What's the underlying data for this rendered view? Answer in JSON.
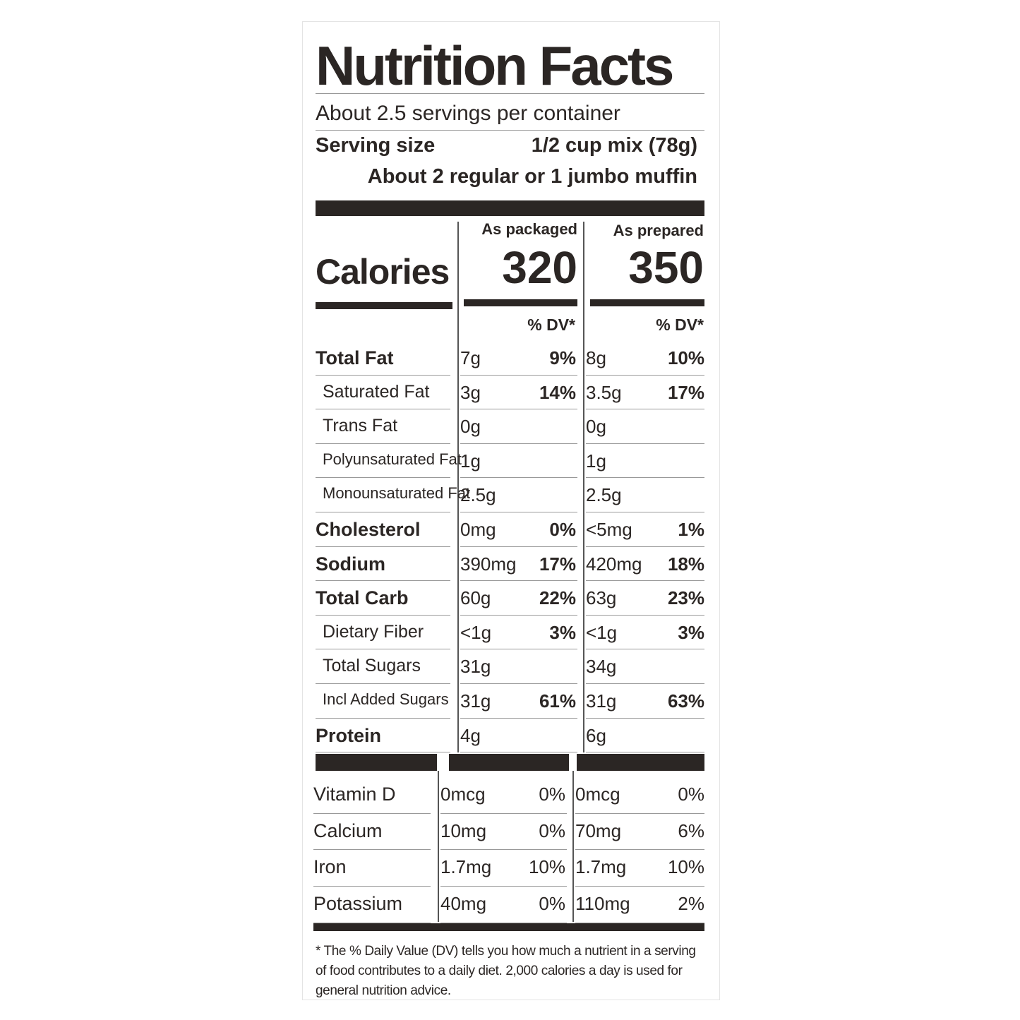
{
  "title": "Nutrition Facts",
  "servings": "About 2.5 servings per container",
  "serving_size": {
    "label": "Serving size",
    "value": "1/2 cup mix (78g)",
    "note": "About 2 regular or 1 jumbo muffin"
  },
  "columns": [
    "As packaged",
    "As prepared"
  ],
  "calories": {
    "label": "Calories",
    "values": [
      "320",
      "350"
    ]
  },
  "dv_header": "% DV*",
  "nutrients": [
    {
      "name": "Total Fat",
      "packaged": {
        "amount": "7g",
        "dv": "9%"
      },
      "prepared": {
        "amount": "8g",
        "dv": "10%"
      }
    },
    {
      "name": "Saturated Fat",
      "packaged": {
        "amount": "3g",
        "dv": "14%"
      },
      "prepared": {
        "amount": "3.5g",
        "dv": "17%"
      }
    },
    {
      "name": "Trans Fat",
      "packaged": {
        "amount": "0g"
      },
      "prepared": {
        "amount": "0g"
      }
    },
    {
      "name": "Polyunsaturated Fat",
      "packaged": {
        "amount": "1g"
      },
      "prepared": {
        "amount": "1g"
      }
    },
    {
      "name": "Monounsaturated Fat",
      "packaged": {
        "amount": "2.5g"
      },
      "prepared": {
        "amount": "2.5g"
      }
    },
    {
      "name": "Cholesterol",
      "packaged": {
        "amount": "0mg",
        "dv": "0%"
      },
      "prepared": {
        "amount": "<5mg",
        "dv": "1%"
      }
    },
    {
      "name": "Sodium",
      "packaged": {
        "amount": "390mg",
        "dv": "17%"
      },
      "prepared": {
        "amount": "420mg",
        "dv": "18%"
      }
    },
    {
      "name": "Total Carb",
      "packaged": {
        "amount": "60g",
        "dv": "22%"
      },
      "prepared": {
        "amount": "63g",
        "dv": "23%"
      }
    },
    {
      "name": "Dietary Fiber",
      "packaged": {
        "amount": "<1g",
        "dv": "3%"
      },
      "prepared": {
        "amount": "<1g",
        "dv": "3%"
      }
    },
    {
      "name": "Total Sugars",
      "packaged": {
        "amount": "31g"
      },
      "prepared": {
        "amount": "34g"
      }
    },
    {
      "name": "Incl Added Sugars",
      "packaged": {
        "amount": "31g",
        "dv": "61%"
      },
      "prepared": {
        "amount": "31g",
        "dv": "63%"
      }
    },
    {
      "name": "Protein",
      "packaged": {
        "amount": "4g"
      },
      "prepared": {
        "amount": "6g"
      }
    }
  ],
  "vitamins": [
    {
      "name": "Vitamin D",
      "packaged": {
        "amount": "0mcg",
        "dv": "0%"
      },
      "prepared": {
        "amount": "0mcg",
        "dv": "0%"
      }
    },
    {
      "name": "Calcium",
      "packaged": {
        "amount": "10mg",
        "dv": "0%"
      },
      "prepared": {
        "amount": "70mg",
        "dv": "6%"
      }
    },
    {
      "name": "Iron",
      "packaged": {
        "amount": "1.7mg",
        "dv": "10%"
      },
      "prepared": {
        "amount": "1.7mg",
        "dv": "10%"
      }
    },
    {
      "name": "Potassium",
      "packaged": {
        "amount": "40mg",
        "dv": "0%"
      },
      "prepared": {
        "amount": "110mg",
        "dv": "2%"
      }
    }
  ],
  "footnote": "* The % Daily Value (DV) tells you how much a nutrient in a serving of food contributes to a daily diet. 2,000 calories a day is used for general nutrition advice."
}
